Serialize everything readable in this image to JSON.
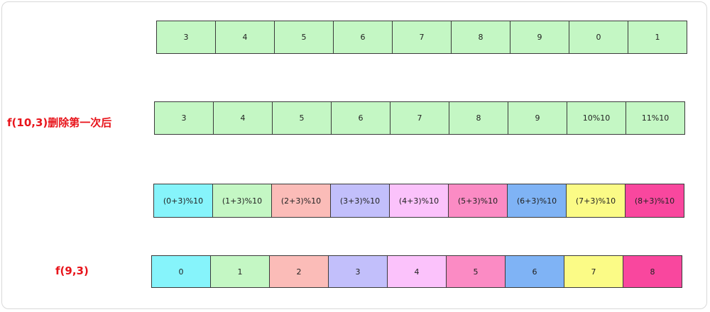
{
  "labels": {
    "after_delete": "f(10,3)删除第一次后",
    "f93": "f(9,3)"
  },
  "rows": [
    {
      "cells": [
        {
          "text": "3",
          "color": "#c4f7c4"
        },
        {
          "text": "4",
          "color": "#c4f7c4"
        },
        {
          "text": "5",
          "color": "#c4f7c4"
        },
        {
          "text": "6",
          "color": "#c4f7c4"
        },
        {
          "text": "7",
          "color": "#c4f7c4"
        },
        {
          "text": "8",
          "color": "#c4f7c4"
        },
        {
          "text": "9",
          "color": "#c4f7c4"
        },
        {
          "text": "0",
          "color": "#c4f7c4"
        },
        {
          "text": "1",
          "color": "#c4f7c4"
        }
      ]
    },
    {
      "cells": [
        {
          "text": "3",
          "color": "#c4f7c4"
        },
        {
          "text": "4",
          "color": "#c4f7c4"
        },
        {
          "text": "5",
          "color": "#c4f7c4"
        },
        {
          "text": "6",
          "color": "#c4f7c4"
        },
        {
          "text": "7",
          "color": "#c4f7c4"
        },
        {
          "text": "8",
          "color": "#c4f7c4"
        },
        {
          "text": "9",
          "color": "#c4f7c4"
        },
        {
          "text": "10%10",
          "color": "#c4f7c4"
        },
        {
          "text": "11%10",
          "color": "#c4f7c4"
        }
      ]
    },
    {
      "cells": [
        {
          "text": "(0+3)%10",
          "color": "#86f4fb"
        },
        {
          "text": "(1+3)%10",
          "color": "#c4f7c4"
        },
        {
          "text": "(2+3)%10",
          "color": "#fbbcb8"
        },
        {
          "text": "(3+3)%10",
          "color": "#c2bffb"
        },
        {
          "text": "(4+3)%10",
          "color": "#fbc2fb"
        },
        {
          "text": "(5+3)%10",
          "color": "#fb8bc4"
        },
        {
          "text": "(6+3)%10",
          "color": "#7fb3f5"
        },
        {
          "text": "(7+3)%10",
          "color": "#fbfb86"
        },
        {
          "text": "(8+3)%10",
          "color": "#f9479e"
        }
      ]
    },
    {
      "cells": [
        {
          "text": "0",
          "color": "#86f4fb"
        },
        {
          "text": "1",
          "color": "#c4f7c4"
        },
        {
          "text": "2",
          "color": "#fbbcb8"
        },
        {
          "text": "3",
          "color": "#c2bffb"
        },
        {
          "text": "4",
          "color": "#fbc2fb"
        },
        {
          "text": "5",
          "color": "#fb8bc4"
        },
        {
          "text": "6",
          "color": "#7fb3f5"
        },
        {
          "text": "7",
          "color": "#fbfb86"
        },
        {
          "text": "8",
          "color": "#f9479e"
        }
      ]
    }
  ]
}
